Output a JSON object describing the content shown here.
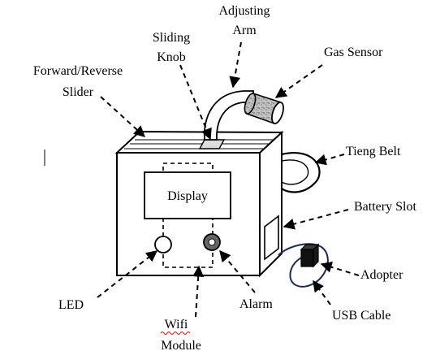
{
  "diagram": {
    "display_label": "Display",
    "labels": {
      "adjusting_arm": [
        "Adjusting",
        "Arm"
      ],
      "sliding_knob": [
        "Sliding",
        "Knob"
      ],
      "gas_sensor": "Gas Sensor",
      "forward_reverse_slider": [
        "Forward/Reverse",
        "Slider"
      ],
      "tieng_belt": "Tieng Belt",
      "battery_slot": "Battery Slot",
      "adopter": "Adopter",
      "usb_cable": "USB Cable",
      "led": "LED",
      "wifi_module": [
        "Wifi",
        "Module"
      ],
      "alarm": "Alarm"
    },
    "colors": {
      "stroke": "#000000",
      "background": "#ffffff",
      "spellcheck_underline": "#e0302a"
    }
  }
}
